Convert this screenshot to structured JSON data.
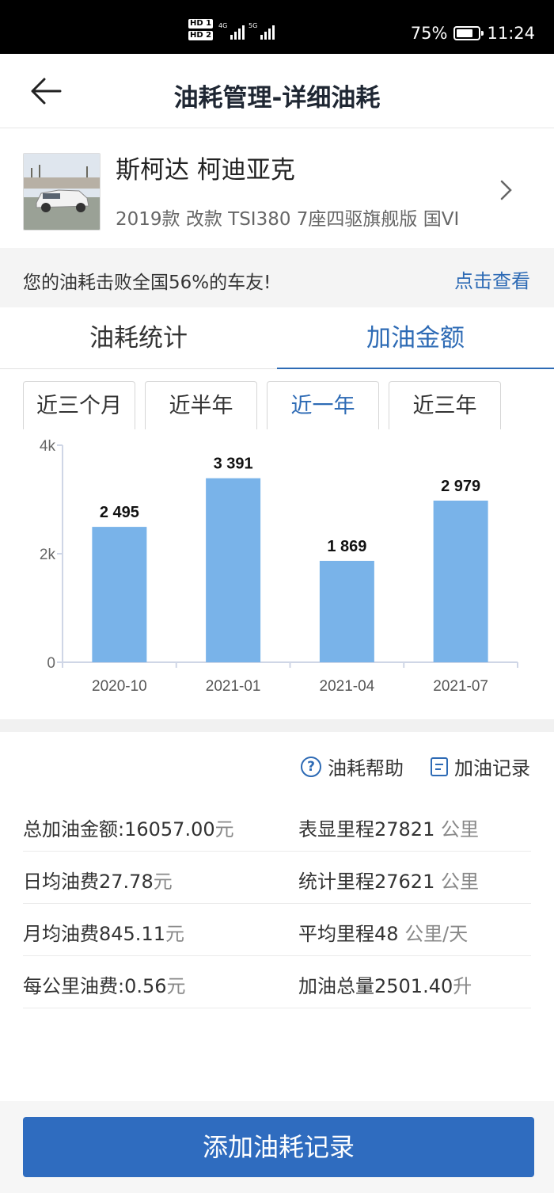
{
  "status_bar": {
    "hd1": "HD 1",
    "hd2": "HD 2",
    "net1": "4G",
    "net2": "5G",
    "battery": "75%",
    "battery_level": 0.75,
    "time": "11:24"
  },
  "header": {
    "title": "油耗管理-详细油耗",
    "back_icon": "arrow-left-icon"
  },
  "car": {
    "name": "斯柯达 柯迪亚克",
    "model": "2019款 改款 TSI380 7座四驱旗舰版 国VI",
    "chevron_icon": "chevron-right-icon"
  },
  "rank": {
    "text": "您的油耗击败全国56%的车友!",
    "link": "点击查看"
  },
  "tabs": [
    {
      "label": "油耗统计",
      "active": false
    },
    {
      "label": "加油金额",
      "active": true
    }
  ],
  "periods": [
    {
      "label": "近三个月",
      "active": false
    },
    {
      "label": "近半年",
      "active": false
    },
    {
      "label": "近一年",
      "active": true
    },
    {
      "label": "近三年",
      "active": false
    }
  ],
  "chart_data": {
    "type": "bar",
    "categories": [
      "2020-10",
      "2021-01",
      "2021-04",
      "2021-07"
    ],
    "values": [
      2495,
      3391,
      1869,
      2979
    ],
    "value_labels": [
      "2 495",
      "3 391",
      "1 869",
      "2 979"
    ],
    "y_ticks": [
      "0",
      "2k",
      "4k"
    ],
    "ylim": [
      0,
      4000
    ],
    "bar_color": "#79b3e9",
    "grid": false
  },
  "help": {
    "help_label": "油耗帮助",
    "help_icon": "question-circle-icon",
    "record_label": "加油记录",
    "record_icon": "list-doc-icon"
  },
  "stats": [
    {
      "left": {
        "label": "总加油金额:",
        "value": "16057.00",
        "unit": "元"
      },
      "right": {
        "label": "表显里程",
        "value": "27821",
        "unit": "公里"
      }
    },
    {
      "left": {
        "label": "日均油费",
        "value": "27.78",
        "unit": "元"
      },
      "right": {
        "label": "统计里程",
        "value": "27621",
        "unit": "公里"
      }
    },
    {
      "left": {
        "label": "月均油费",
        "value": "845.11",
        "unit": "元"
      },
      "right": {
        "label": "平均里程",
        "value": "48",
        "unit": "公里/天"
      }
    },
    {
      "left": {
        "label": "每公里油费",
        "value": ":0.56",
        "unit": "元"
      },
      "right": {
        "label": "加油总量",
        "value": "2501.40",
        "unit": "升"
      }
    }
  ],
  "bottom": {
    "add_button": "添加油耗记录"
  },
  "colors": {
    "accent": "#2e6bb5",
    "button": "#2f6cbf"
  }
}
